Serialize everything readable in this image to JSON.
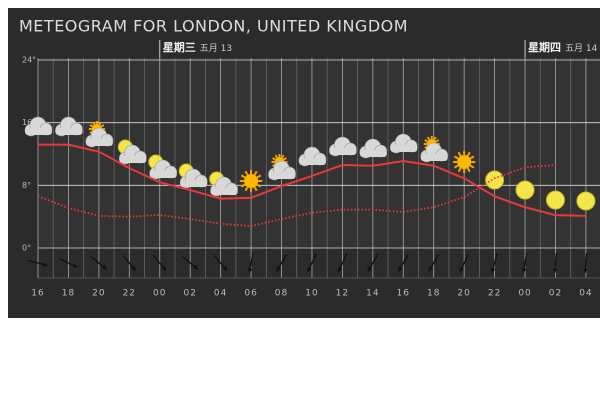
{
  "chart_data": {
    "type": "line",
    "title": "METEOGRAM FOR LONDON, UNITED KINGDOM",
    "days": [
      {
        "weekday": "星期三",
        "date": "五月 13"
      },
      {
        "weekday": "星期四",
        "date": "五月 14"
      }
    ],
    "categories": [
      "16",
      "18",
      "20",
      "22",
      "00",
      "02",
      "04",
      "06",
      "08",
      "10",
      "12",
      "14",
      "16",
      "18",
      "20",
      "22",
      "00",
      "02",
      "04"
    ],
    "series": [
      {
        "color": "#e8383d",
        "style": "solid",
        "values": [
          13.2,
          13.2,
          12.3,
          10.2,
          8.4,
          7.4,
          6.3,
          6.4,
          7.9,
          9.2,
          10.6,
          10.5,
          11.1,
          10.5,
          8.9,
          6.6,
          5.2,
          4.2,
          4.1
        ]
      },
      {
        "color": "#e8383d",
        "style": "dotted",
        "values": [
          6.6,
          5.1,
          4.1,
          4.0,
          4.2,
          3.7,
          3.1,
          2.8,
          3.7,
          4.5,
          4.9,
          4.9,
          4.6,
          5.2,
          6.5,
          8.9,
          10.3,
          10.6,
          null
        ]
      }
    ],
    "ylim": [
      0,
      24
    ],
    "yticks": [
      {
        "value": 0,
        "label": "0°"
      },
      {
        "value": 8,
        "label": "8°"
      },
      {
        "value": 16,
        "label": "16°"
      },
      {
        "value": 24,
        "label": "24°"
      }
    ],
    "grid": true
  }
}
